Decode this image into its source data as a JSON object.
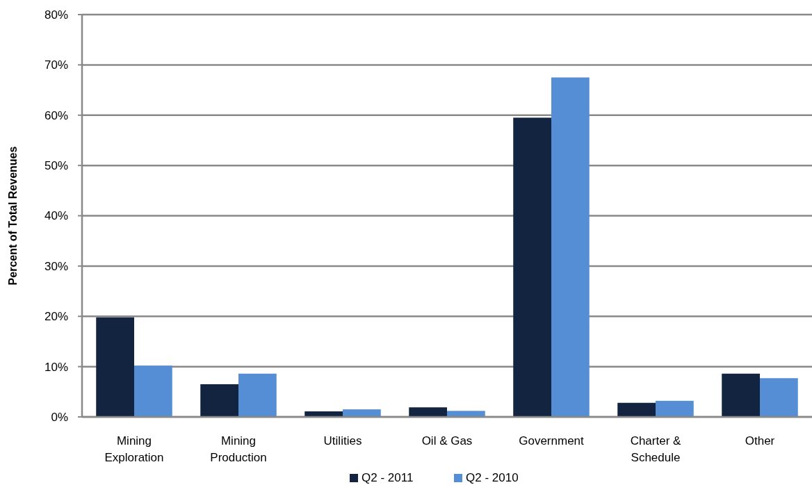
{
  "chart_data": {
    "type": "bar",
    "ylabel": "Percent of Total Revenues",
    "categories": [
      "Mining\nExploration",
      "Mining\nProduction",
      "Utilities",
      "Oil & Gas",
      "Government",
      "Charter &\nSchedule",
      "Other"
    ],
    "series": [
      {
        "name": "Q2 - 2011",
        "color": "#12243f",
        "values": [
          19.8,
          6.5,
          1.1,
          1.9,
          59.5,
          2.8,
          8.6
        ]
      },
      {
        "name": "Q2 - 2010",
        "color": "#558ed5",
        "values": [
          10.2,
          8.6,
          1.5,
          1.2,
          67.5,
          3.2,
          7.7
        ]
      }
    ],
    "ylim": [
      0,
      80
    ],
    "yticks": [
      {
        "value": 0,
        "label": "0%"
      },
      {
        "value": 10,
        "label": "10%"
      },
      {
        "value": 20,
        "label": "20%"
      },
      {
        "value": 30,
        "label": "30%"
      },
      {
        "value": 40,
        "label": "40%"
      },
      {
        "value": 50,
        "label": "50%"
      },
      {
        "value": 60,
        "label": "60%"
      },
      {
        "value": 70,
        "label": "70%"
      },
      {
        "value": 80,
        "label": "80%"
      }
    ],
    "grid": "y",
    "legend": "bottom"
  }
}
